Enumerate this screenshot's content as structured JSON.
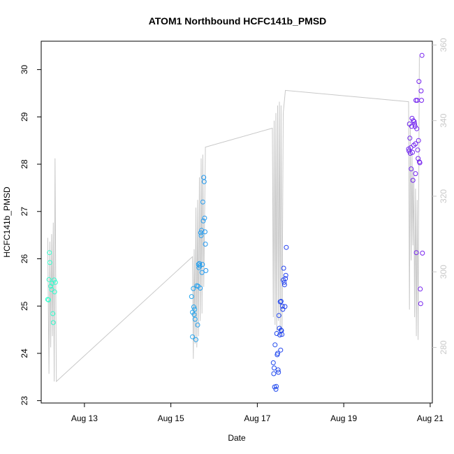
{
  "chart_data": {
    "type": "scatter",
    "title": "ATOM1 Northbound HCFC141b_PMSD",
    "xlabel": "Date",
    "ylabel": "HCFC141b_PMSD",
    "x_ticks": [
      {
        "day": 13,
        "label": "Aug 13"
      },
      {
        "day": 15,
        "label": "Aug 15"
      },
      {
        "day": 17,
        "label": "Aug 17"
      },
      {
        "day": 19,
        "label": "Aug 19"
      },
      {
        "day": 21,
        "label": "Aug 21"
      }
    ],
    "xlim": [
      12.0,
      21.05
    ],
    "ylim": [
      22.95,
      30.6
    ],
    "y_ticks": [
      23,
      24,
      25,
      26,
      27,
      28,
      29,
      30
    ],
    "y2lim": [
      265.3,
      361.0
    ],
    "y2_ticks": [
      280,
      300,
      320,
      340,
      360
    ],
    "grid": false,
    "legend": "none",
    "colors": {
      "points_by_time": [
        "#33ffcc",
        "#22bbee",
        "#2233ee",
        "#7722ee"
      ],
      "secondary_line": "#c8c8c8",
      "axis": "#000000",
      "secondary_axis": "#c8c8c8"
    },
    "secondary_series": {
      "name": "",
      "x": [
        12.15,
        12.18,
        12.2,
        12.22,
        12.24,
        12.26,
        12.28,
        12.3,
        12.32,
        12.35,
        15.5,
        15.52,
        15.54,
        15.56,
        15.58,
        15.6,
        15.62,
        15.64,
        15.66,
        15.68,
        15.7,
        15.72,
        15.74,
        15.76,
        15.8,
        17.35,
        17.37,
        17.39,
        17.41,
        17.43,
        17.45,
        17.47,
        17.49,
        17.51,
        17.53,
        17.55,
        17.57,
        17.6,
        17.65,
        20.5,
        20.52,
        20.54,
        20.56,
        20.58,
        20.6,
        20.62,
        20.64,
        20.66,
        20.68,
        20.7,
        20.72,
        20.75
      ],
      "y": [
        309,
        273,
        308,
        280,
        310,
        283,
        313,
        271,
        330,
        271,
        304,
        277,
        306,
        281,
        317,
        280,
        319,
        283,
        325,
        287,
        330,
        289,
        331,
        296,
        333,
        338,
        288,
        340,
        286,
        342,
        284,
        344,
        287,
        345,
        283,
        344,
        283,
        342,
        348,
        345,
        290,
        339,
        303,
        331,
        307,
        327,
        288,
        322,
        283,
        319,
        282,
        357
      ]
    },
    "points": [
      {
        "x": 12.15,
        "y": 25.14
      },
      {
        "x": 12.17,
        "y": 25.13
      },
      {
        "x": 12.18,
        "y": 25.56
      },
      {
        "x": 12.19,
        "y": 26.13
      },
      {
        "x": 12.2,
        "y": 25.92
      },
      {
        "x": 12.22,
        "y": 25.42
      },
      {
        "x": 12.24,
        "y": 25.35
      },
      {
        "x": 12.25,
        "y": 25.48
      },
      {
        "x": 12.27,
        "y": 24.84
      },
      {
        "x": 12.28,
        "y": 24.65
      },
      {
        "x": 12.3,
        "y": 25.55
      },
      {
        "x": 12.31,
        "y": 25.3
      },
      {
        "x": 12.33,
        "y": 25.5
      },
      {
        "x": 15.48,
        "y": 25.2
      },
      {
        "x": 15.5,
        "y": 24.87
      },
      {
        "x": 15.5,
        "y": 24.35
      },
      {
        "x": 15.52,
        "y": 25.37
      },
      {
        "x": 15.53,
        "y": 24.98
      },
      {
        "x": 15.54,
        "y": 24.82
      },
      {
        "x": 15.55,
        "y": 24.93
      },
      {
        "x": 15.56,
        "y": 24.72
      },
      {
        "x": 15.58,
        "y": 24.29
      },
      {
        "x": 15.6,
        "y": 25.43
      },
      {
        "x": 15.62,
        "y": 24.6
      },
      {
        "x": 15.63,
        "y": 25.42
      },
      {
        "x": 15.64,
        "y": 25.88
      },
      {
        "x": 15.65,
        "y": 25.81
      },
      {
        "x": 15.66,
        "y": 25.9
      },
      {
        "x": 15.67,
        "y": 25.85
      },
      {
        "x": 15.68,
        "y": 25.38
      },
      {
        "x": 15.69,
        "y": 26.55
      },
      {
        "x": 15.7,
        "y": 26.49
      },
      {
        "x": 15.71,
        "y": 26.6
      },
      {
        "x": 15.72,
        "y": 25.71
      },
      {
        "x": 15.73,
        "y": 25.88
      },
      {
        "x": 15.74,
        "y": 27.2
      },
      {
        "x": 15.75,
        "y": 26.8
      },
      {
        "x": 15.76,
        "y": 27.72
      },
      {
        "x": 15.77,
        "y": 27.63
      },
      {
        "x": 15.78,
        "y": 26.86
      },
      {
        "x": 15.79,
        "y": 26.57
      },
      {
        "x": 15.8,
        "y": 26.31
      },
      {
        "x": 15.81,
        "y": 25.75
      },
      {
        "x": 17.37,
        "y": 23.8
      },
      {
        "x": 17.38,
        "y": 23.57
      },
      {
        "x": 17.39,
        "y": 23.69
      },
      {
        "x": 17.4,
        "y": 23.29
      },
      {
        "x": 17.41,
        "y": 24.18
      },
      {
        "x": 17.43,
        "y": 23.24
      },
      {
        "x": 17.44,
        "y": 23.3
      },
      {
        "x": 17.45,
        "y": 24.42
      },
      {
        "x": 17.46,
        "y": 23.97
      },
      {
        "x": 17.47,
        "y": 24.0
      },
      {
        "x": 17.48,
        "y": 23.65
      },
      {
        "x": 17.49,
        "y": 23.6
      },
      {
        "x": 17.5,
        "y": 24.8
      },
      {
        "x": 17.51,
        "y": 24.53
      },
      {
        "x": 17.52,
        "y": 24.39
      },
      {
        "x": 17.53,
        "y": 25.09
      },
      {
        "x": 17.54,
        "y": 24.07
      },
      {
        "x": 17.55,
        "y": 25.1
      },
      {
        "x": 17.55,
        "y": 24.49
      },
      {
        "x": 17.56,
        "y": 24.48
      },
      {
        "x": 17.57,
        "y": 24.4
      },
      {
        "x": 17.58,
        "y": 25.0
      },
      {
        "x": 17.59,
        "y": 24.93
      },
      {
        "x": 17.6,
        "y": 25.55
      },
      {
        "x": 17.61,
        "y": 25.8
      },
      {
        "x": 17.62,
        "y": 25.5
      },
      {
        "x": 17.63,
        "y": 25.45
      },
      {
        "x": 17.64,
        "y": 24.99
      },
      {
        "x": 17.65,
        "y": 25.58
      },
      {
        "x": 17.66,
        "y": 25.65
      },
      {
        "x": 17.67,
        "y": 26.24
      },
      {
        "x": 20.5,
        "y": 28.32
      },
      {
        "x": 20.51,
        "y": 28.28
      },
      {
        "x": 20.52,
        "y": 28.85
      },
      {
        "x": 20.53,
        "y": 28.55
      },
      {
        "x": 20.54,
        "y": 28.23
      },
      {
        "x": 20.55,
        "y": 28.35
      },
      {
        "x": 20.56,
        "y": 27.9
      },
      {
        "x": 20.57,
        "y": 28.8
      },
      {
        "x": 20.58,
        "y": 28.97
      },
      {
        "x": 20.59,
        "y": 28.25
      },
      {
        "x": 20.6,
        "y": 27.66
      },
      {
        "x": 20.61,
        "y": 28.92
      },
      {
        "x": 20.62,
        "y": 28.4
      },
      {
        "x": 20.63,
        "y": 28.9
      },
      {
        "x": 20.64,
        "y": 28.85
      },
      {
        "x": 20.65,
        "y": 28.8
      },
      {
        "x": 20.66,
        "y": 28.43
      },
      {
        "x": 20.66,
        "y": 27.8
      },
      {
        "x": 20.67,
        "y": 29.35
      },
      {
        "x": 20.68,
        "y": 26.13
      },
      {
        "x": 20.69,
        "y": 28.75
      },
      {
        "x": 20.7,
        "y": 29.35
      },
      {
        "x": 20.71,
        "y": 28.3
      },
      {
        "x": 20.72,
        "y": 28.12
      },
      {
        "x": 20.73,
        "y": 28.5
      },
      {
        "x": 20.74,
        "y": 29.75
      },
      {
        "x": 20.75,
        "y": 28.05
      },
      {
        "x": 20.76,
        "y": 28.03
      },
      {
        "x": 20.77,
        "y": 25.36
      },
      {
        "x": 20.78,
        "y": 25.05
      },
      {
        "x": 20.79,
        "y": 29.55
      },
      {
        "x": 20.8,
        "y": 29.35
      },
      {
        "x": 20.81,
        "y": 30.3
      },
      {
        "x": 20.82,
        "y": 26.12
      }
    ]
  }
}
